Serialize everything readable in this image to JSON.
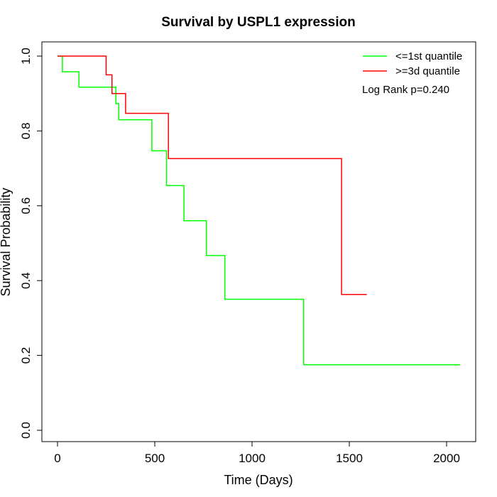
{
  "chart_data": {
    "type": "line",
    "title": "Survival by USPL1 expression",
    "xlabel": "Time (Days)",
    "ylabel": "Survival Probability",
    "xlim": [
      0,
      2070
    ],
    "ylim": [
      0,
      1
    ],
    "xticks": [
      0,
      500,
      1000,
      1500,
      2000
    ],
    "yticks": [
      0.0,
      0.2,
      0.4,
      0.6,
      0.8,
      1.0
    ],
    "xtick_labels": [
      "0",
      "500",
      "1000",
      "1500",
      "2000"
    ],
    "ytick_labels": [
      "0.0",
      "0.2",
      "0.4",
      "0.6",
      "0.8",
      "1.0"
    ],
    "grid": false,
    "legend_position": "top-right",
    "series": [
      {
        "name": "<=1st quantile",
        "color": "#00ff00",
        "step": true,
        "x": [
          0,
          25,
          110,
          300,
          315,
          485,
          560,
          650,
          765,
          860,
          1265,
          2070
        ],
        "y": [
          1.0,
          0.958,
          0.917,
          0.873,
          0.83,
          0.747,
          0.654,
          0.56,
          0.467,
          0.35,
          0.175,
          0.175
        ]
      },
      {
        "name": ">=3d quantile",
        "color": "#ff0000",
        "step": true,
        "x": [
          0,
          250,
          280,
          350,
          570,
          1460,
          1590
        ],
        "y": [
          1.0,
          0.95,
          0.9,
          0.847,
          0.726,
          0.363,
          0.363
        ]
      }
    ],
    "annotations": [
      "Log Rank p=0.240"
    ]
  }
}
